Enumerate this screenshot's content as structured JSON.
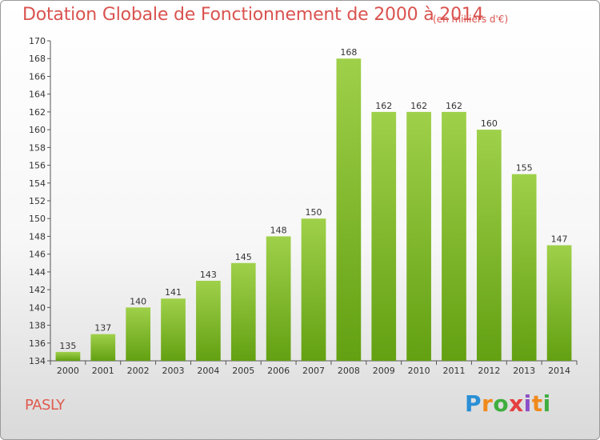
{
  "header": {
    "title": "Dotation Globale de Fonctionnement de 2000 à 2014",
    "subtitle": "(en milliers d'€)"
  },
  "footer": {
    "city": "PASLY",
    "logo": "Proxiti"
  },
  "colors": {
    "bar_light": "#9fd04a",
    "bar_dark": "#63a012",
    "title": "#d9534f"
  },
  "chart_data": {
    "type": "bar",
    "title": "Dotation Globale de Fonctionnement de 2000 à 2014",
    "subtitle": "(en milliers d'€)",
    "categories": [
      "2000",
      "2001",
      "2002",
      "2003",
      "2004",
      "2005",
      "2006",
      "2007",
      "2008",
      "2009",
      "2010",
      "2011",
      "2012",
      "2013",
      "2014"
    ],
    "values": [
      135,
      137,
      140,
      141,
      143,
      145,
      148,
      150,
      168,
      162,
      162,
      162,
      160,
      155,
      147
    ],
    "ylim": [
      134,
      170
    ],
    "yticks": [
      134,
      136,
      138,
      140,
      142,
      144,
      146,
      148,
      150,
      152,
      154,
      156,
      158,
      160,
      162,
      164,
      166,
      168,
      170
    ],
    "grid": false,
    "legend": "none"
  }
}
